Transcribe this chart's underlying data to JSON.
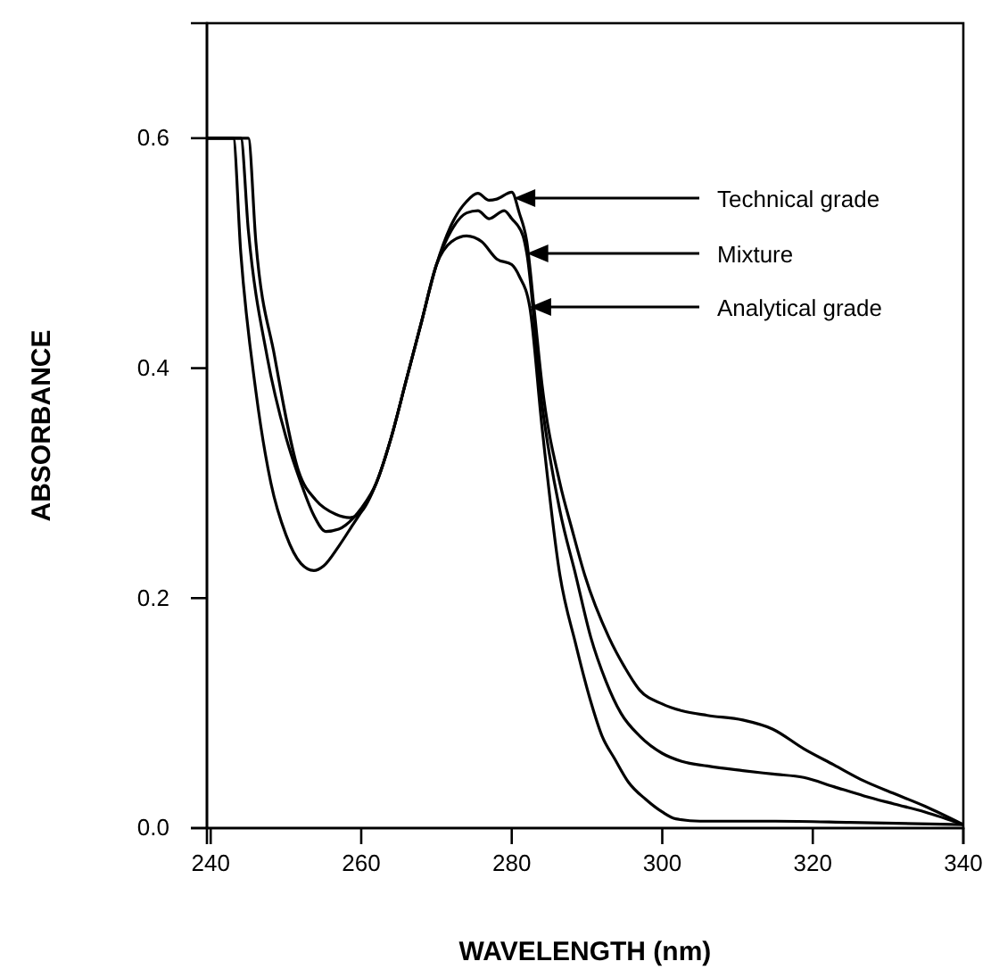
{
  "chart_data": {
    "type": "line",
    "xlabel": "WAVELENGTH (nm)",
    "ylabel": "ABSORBANCE",
    "xlim": [
      239.5,
      340
    ],
    "ylim": [
      0,
      0.7
    ],
    "xticks": [
      240,
      260,
      280,
      300,
      320,
      340
    ],
    "yticks": [
      {
        "value": 0,
        "label": "0.0"
      },
      {
        "value": 0.2,
        "label": "0.2"
      },
      {
        "value": 0.4,
        "label": "0.4"
      },
      {
        "value": 0.6,
        "label": "0.6"
      }
    ],
    "grid": false,
    "marker": "none",
    "annotations": [
      "Technical grade",
      "Mixture",
      "Analytical grade"
    ],
    "line_style": "solid",
    "series": [
      {
        "color": "#000000",
        "x": [
          239.5,
          245,
          246,
          248.5,
          251.7,
          254,
          256.6,
          258.5,
          260,
          262,
          264,
          266,
          268,
          270,
          272,
          274,
          275.5,
          277,
          278,
          280,
          281,
          282,
          283,
          284,
          286.4,
          288,
          289.7,
          292.9,
          295,
          297,
          300,
          302.6,
          306,
          310.7,
          314.7,
          318.8,
          322.8,
          326.8,
          330.8,
          334.9,
          340
        ],
        "values": [
          0.6,
          0.6,
          0.51,
          0.41,
          0.31,
          0.285,
          0.273,
          0.27,
          0.275,
          0.3,
          0.34,
          0.39,
          0.44,
          0.49,
          0.525,
          0.545,
          0.552,
          0.546,
          0.547,
          0.553,
          0.535,
          0.51,
          0.45,
          0.387,
          0.3,
          0.26,
          0.22,
          0.166,
          0.14,
          0.12,
          0.108,
          0.102,
          0.098,
          0.094,
          0.086,
          0.069,
          0.055,
          0.041,
          0.03,
          0.019,
          0.003
        ]
      },
      {
        "color": "#000000",
        "x": [
          239.5,
          244,
          245,
          247.5,
          250,
          252,
          253.7,
          255.3,
          257,
          259,
          260,
          262,
          264,
          266,
          268,
          270,
          272,
          274,
          275.5,
          277,
          279,
          280,
          281.5,
          282,
          284,
          286.4,
          288.5,
          290.5,
          292.5,
          294.5,
          297,
          300,
          302.6,
          306,
          310.7,
          314.7,
          318.8,
          322.8,
          326.8,
          330.8,
          334.9,
          340
        ],
        "values": [
          0.6,
          0.6,
          0.52,
          0.41,
          0.34,
          0.3,
          0.272,
          0.258,
          0.26,
          0.27,
          0.278,
          0.3,
          0.34,
          0.39,
          0.44,
          0.49,
          0.52,
          0.535,
          0.537,
          0.53,
          0.537,
          0.53,
          0.515,
          0.5,
          0.37,
          0.276,
          0.22,
          0.166,
          0.128,
          0.1,
          0.08,
          0.065,
          0.058,
          0.054,
          0.05,
          0.047,
          0.044,
          0.036,
          0.028,
          0.021,
          0.014,
          0.003
        ]
      },
      {
        "color": "#000000",
        "x": [
          239.5,
          243,
          244,
          246,
          248,
          250,
          252,
          253.7,
          255,
          257,
          259,
          260,
          262,
          264,
          266,
          268,
          270,
          272,
          274,
          276,
          278,
          280,
          281,
          282.4,
          284,
          286.4,
          288.5,
          290.5,
          292,
          293.7,
          295.5,
          297.8,
          300,
          301.8,
          305,
          315,
          325,
          340
        ],
        "values": [
          0.6,
          0.6,
          0.5,
          0.38,
          0.3,
          0.255,
          0.23,
          0.224,
          0.228,
          0.245,
          0.265,
          0.275,
          0.3,
          0.34,
          0.39,
          0.44,
          0.49,
          0.51,
          0.515,
          0.51,
          0.495,
          0.49,
          0.48,
          0.453,
          0.35,
          0.22,
          0.16,
          0.11,
          0.08,
          0.06,
          0.04,
          0.025,
          0.014,
          0.008,
          0.006,
          0.006,
          0.005,
          0.003
        ]
      }
    ]
  }
}
